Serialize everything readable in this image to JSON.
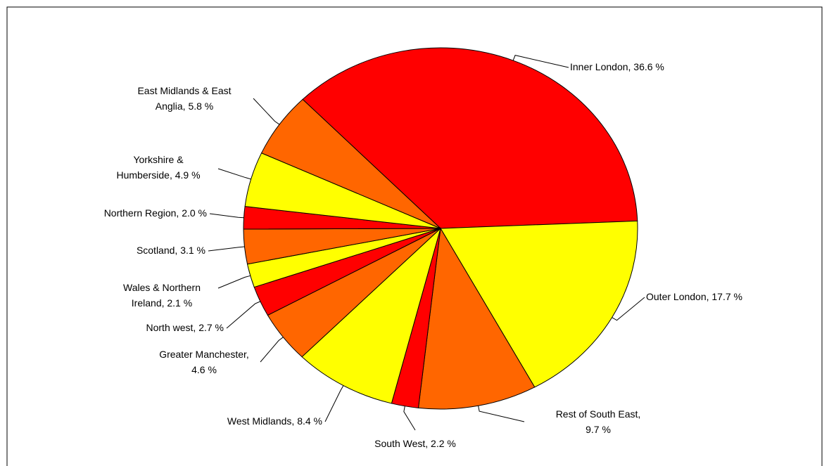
{
  "chart_data": {
    "type": "pie",
    "values": [
      36.6,
      17.7,
      9.7,
      2.2,
      8.4,
      4.6,
      2.7,
      2.1,
      3.1,
      2.0,
      4.9,
      5.8
    ],
    "value_labels": [
      [
        "Inner London, 36.6 %"
      ],
      [
        "Outer London, 17.7 %"
      ],
      [
        "Rest of South East,",
        "9.7 %"
      ],
      [
        "South West, 2.2 %"
      ],
      [
        "West Midlands, 8.4 %"
      ],
      [
        "Greater Manchester,",
        "4.6 %"
      ],
      [
        "North west, 2.7 %"
      ],
      [
        "Wales & Northern",
        "Ireland, 2.1 %"
      ],
      [
        "Scotland, 3.1 %"
      ],
      [
        "Northern Region, 2.0 %"
      ],
      [
        "Yorkshire &",
        "Humberside, 4.9 %"
      ],
      [
        "East Midlands & East",
        "Anglia, 5.8 %"
      ]
    ],
    "colors": [
      "#ff0000",
      "#ffff00",
      "#ff6600",
      "#ff0000",
      "#ffff00",
      "#ff6600",
      "#ff0000",
      "#ffff00",
      "#ff6600",
      "#ff0000",
      "#ffff00",
      "#ff6600"
    ]
  }
}
